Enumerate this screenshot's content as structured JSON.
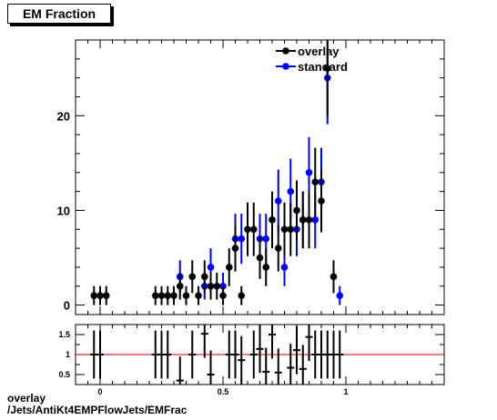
{
  "title": "EM Fraction",
  "footer": {
    "line1": "overlay",
    "line2": "/Jets/AntiKt4EMPFlowJets/EMFrac"
  },
  "colors": {
    "overlay": "#000000",
    "standard": "#0000ff",
    "ratio_line": "#cc0000"
  },
  "chart_data": [
    {
      "type": "scatter",
      "title": "EM Fraction",
      "xlim": [
        -0.1,
        1.4
      ],
      "ylim": [
        -1,
        28
      ],
      "y_ticks": [
        0,
        10,
        20
      ],
      "x_ticks": [
        0,
        0.5,
        1
      ],
      "legend_placement": "top-center",
      "series": [
        {
          "name": "overlay",
          "color": "#000000",
          "x": [
            -0.025,
            0.0,
            0.025,
            0.225,
            0.25,
            0.275,
            0.3,
            0.325,
            0.35,
            0.375,
            0.4,
            0.425,
            0.45,
            0.475,
            0.5,
            0.525,
            0.55,
            0.575,
            0.6,
            0.625,
            0.65,
            0.675,
            0.7,
            0.725,
            0.75,
            0.775,
            0.8,
            0.825,
            0.85,
            0.875,
            0.9,
            0.925,
            0.95,
            0.975,
            1.0,
            1.025
          ],
          "y": [
            1,
            1,
            1,
            1,
            1,
            1,
            1,
            2,
            1,
            3,
            1,
            3,
            2,
            2,
            1,
            4,
            6,
            1,
            8,
            8,
            5,
            4,
            9,
            6,
            8,
            8,
            10,
            9,
            9,
            13,
            11,
            25,
            3,
            null,
            null,
            null
          ]
        },
        {
          "name": "standard",
          "color": "#0000ff",
          "x": [
            0.325,
            0.425,
            0.45,
            0.5,
            0.55,
            0.575,
            0.65,
            0.675,
            0.725,
            0.75,
            0.775,
            0.8,
            0.825,
            0.85,
            0.875,
            0.9,
            0.925,
            0.975,
            1.025
          ],
          "y": [
            3,
            2,
            4,
            2,
            7,
            7,
            7,
            7,
            11,
            4,
            12,
            8,
            9,
            14,
            9,
            13,
            24,
            1,
            null
          ]
        }
      ]
    },
    {
      "type": "scatter",
      "title": "",
      "xlim": [
        -0.1,
        1.4
      ],
      "ylim": [
        0.25,
        1.75
      ],
      "y_ticks": [
        0.5,
        1,
        1.5
      ],
      "x_ticks": [
        0,
        0.5,
        1
      ],
      "reference_line": 1,
      "series": [
        {
          "name": "",
          "x": [
            -0.025,
            0.0,
            0.225,
            0.25,
            0.275,
            0.325,
            0.375,
            0.425,
            0.45,
            0.525,
            0.55,
            0.575,
            0.625,
            0.65,
            0.675,
            0.7,
            0.725,
            0.775,
            0.8,
            0.825,
            0.85,
            0.875,
            0.9,
            0.925,
            0.95,
            0.975
          ],
          "y": [
            1.0,
            1.0,
            1.0,
            1.0,
            1.0,
            0.35,
            1.0,
            1.52,
            0.5,
            1.0,
            1.0,
            0.86,
            1.0,
            1.14,
            0.57,
            1.5,
            0.55,
            0.67,
            1.11,
            0.64,
            1.44,
            1.0,
            1.0,
            1.0,
            1.0,
            1.0
          ]
        }
      ]
    }
  ]
}
